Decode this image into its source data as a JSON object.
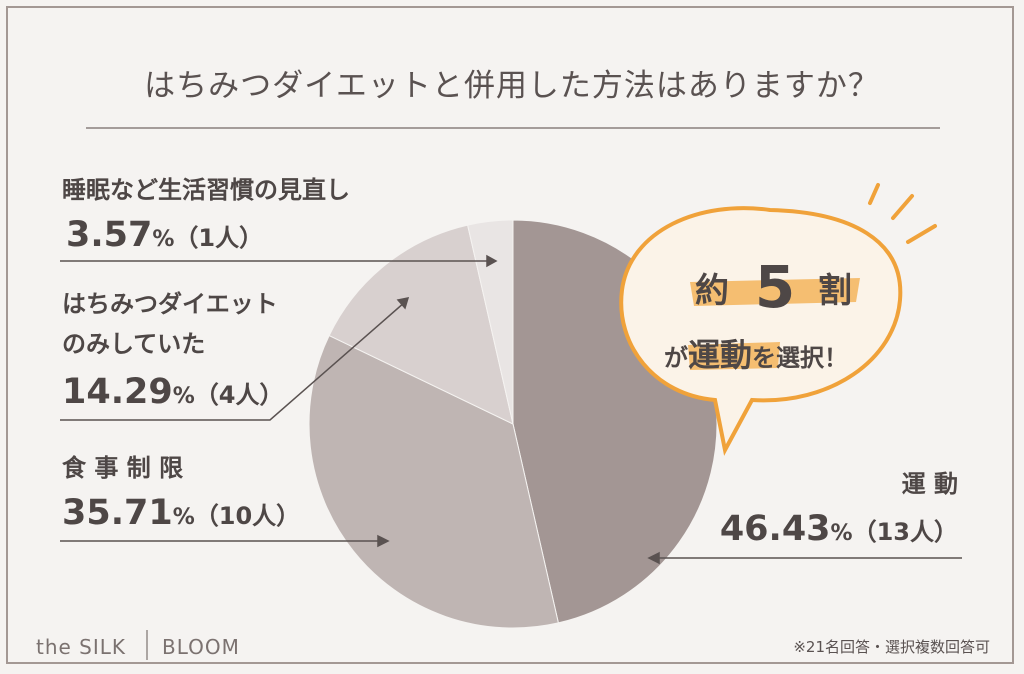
{
  "title": "はちみつダイエットと併用した方法はありますか？",
  "chart_data": {
    "type": "pie",
    "categories": [
      "運動",
      "食事制限",
      "はちみつダイエットのみしていた",
      "睡眠など生活習慣の見直し"
    ],
    "values": [
      46.43,
      35.71,
      14.29,
      3.57
    ],
    "counts": [
      13,
      10,
      4,
      1
    ],
    "colors": [
      "#a39694",
      "#bfb5b3",
      "#d8d0cf",
      "#e9e5e4"
    ]
  },
  "labels": {
    "sleep": {
      "line1": "睡眠など生活習慣の見直し",
      "pct": "3.57",
      "pct_sign": "%",
      "count": "（1人）"
    },
    "honey": {
      "line1": "はちみつダイエット",
      "line2": "のみしていた",
      "pct": "14.29",
      "pct_sign": "%",
      "count": "（4人）"
    },
    "diet": {
      "line1": "食 事 制 限",
      "pct": "35.71",
      "pct_sign": "%",
      "count": "（10人）"
    },
    "exercise": {
      "line1": "運 動",
      "pct": "46.43",
      "pct_sign": "%",
      "count": "（13人）"
    }
  },
  "callout": {
    "prefix": "約",
    "number": "5",
    "suffix": "割",
    "sub_pre": "が",
    "sub_big": "運動",
    "sub_post": "を選択！",
    "accent": "#f0a23a"
  },
  "footnote": "※21名回答・選択複数回答可",
  "brand": {
    "left": "the SILK",
    "right": "BLOOM"
  }
}
